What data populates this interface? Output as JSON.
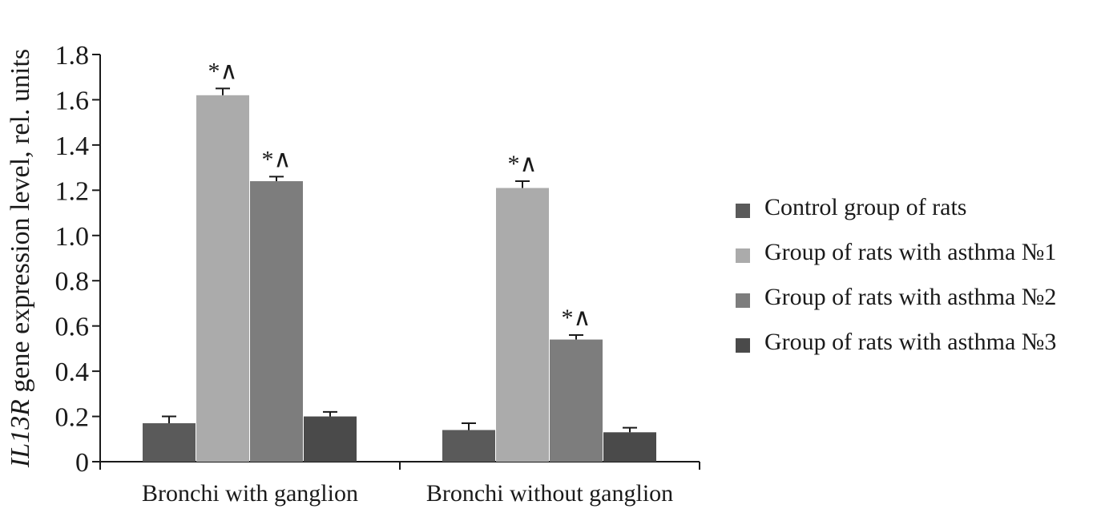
{
  "chart_data": {
    "type": "bar",
    "title": "",
    "ylabel_italic": "IL13R",
    "ylabel_rest": " gene expression level, rel. units",
    "xlabel": "",
    "ylim": [
      0,
      1.8
    ],
    "yticks": [
      "0",
      "0.2",
      "0.4",
      "0.6",
      "0.8",
      "1.0",
      "1.2",
      "1.4",
      "1.6",
      "1.8"
    ],
    "categories": [
      "Bronchi with ganglion",
      "Bronchi without ganglion"
    ],
    "series": [
      {
        "name": "Control group of rats",
        "color": "#5a5a5a",
        "values": [
          0.17,
          0.14
        ],
        "errors": [
          0.03,
          0.03
        ],
        "annotations": [
          "",
          ""
        ]
      },
      {
        "name": "Group of rats with asthma №1",
        "color": "#ababab",
        "values": [
          1.62,
          1.21
        ],
        "errors": [
          0.03,
          0.03
        ],
        "annotations": [
          "*∧",
          "*∧"
        ]
      },
      {
        "name": "Group of rats with asthma №2",
        "color": "#7d7d7d",
        "values": [
          1.24,
          0.54
        ],
        "errors": [
          0.02,
          0.02
        ],
        "annotations": [
          "*∧",
          "*∧"
        ]
      },
      {
        "name": "Group of rats with asthma №3",
        "color": "#4a4a4a",
        "values": [
          0.2,
          0.13
        ],
        "errors": [
          0.02,
          0.02
        ],
        "annotations": [
          "",
          ""
        ]
      }
    ],
    "legend_position": "right",
    "grid": false
  }
}
